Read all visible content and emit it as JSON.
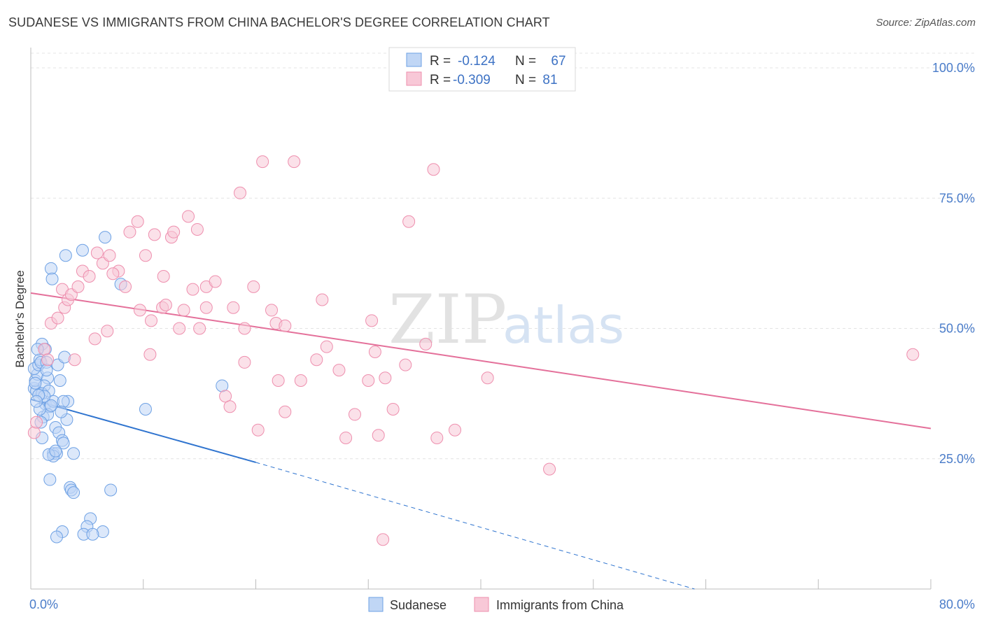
{
  "title": "SUDANESE VS IMMIGRANTS FROM CHINA BACHELOR'S DEGREE CORRELATION CHART",
  "source": "Source: ZipAtlas.com",
  "watermark": {
    "zip": "ZIP",
    "atlas": "atlas"
  },
  "chart_data": {
    "type": "scatter",
    "ylabel": "Bachelor's Degree",
    "xlim": [
      0,
      80
    ],
    "ylim": [
      0,
      105
    ],
    "x_tick_labels": [
      {
        "value": 0,
        "label": "0.0%"
      },
      {
        "value": 80,
        "label": "80.0%"
      }
    ],
    "y_tick_labels": [
      {
        "value": 25,
        "label": "25.0%"
      },
      {
        "value": 50,
        "label": "50.0%"
      },
      {
        "value": 75,
        "label": "75.0%"
      },
      {
        "value": 100,
        "label": "100.0%"
      }
    ],
    "legend": [
      {
        "name": "Sudanese",
        "r_label": "R =",
        "r": "-0.124",
        "n_label": "N =",
        "n": "67",
        "color": "#6ea1e4",
        "fill": "#c0d6f5",
        "line": "#2f74cf"
      },
      {
        "name": "Immigrants from China",
        "r_label": "R =",
        "r": "-0.309",
        "n_label": "N =",
        "n": "81",
        "color": "#ee8fae",
        "fill": "#f8c8d7",
        "line": "#e4709a"
      }
    ],
    "series": [
      {
        "name": "Sudanese",
        "trend": {
          "x0": 0,
          "y0": 36.4,
          "x1": 20,
          "y1": 24.3,
          "dash_to_x": 59,
          "dash_to_y": 0
        },
        "points": [
          [
            0.3,
            38.5
          ],
          [
            0.5,
            38.0
          ],
          [
            0.4,
            40.0
          ],
          [
            0.6,
            41.2
          ],
          [
            0.3,
            42.3
          ],
          [
            0.7,
            43.0
          ],
          [
            0.8,
            44.0
          ],
          [
            1.0,
            47.0
          ],
          [
            0.9,
            43.5
          ],
          [
            1.3,
            46.0
          ],
          [
            1.4,
            43.5
          ],
          [
            1.5,
            40.5
          ],
          [
            1.2,
            39.0
          ],
          [
            1.0,
            37.5
          ],
          [
            1.6,
            38.0
          ],
          [
            1.3,
            35.5
          ],
          [
            1.7,
            35.0
          ],
          [
            1.1,
            33.0
          ],
          [
            1.5,
            33.5
          ],
          [
            0.8,
            34.5
          ],
          [
            2.0,
            36.0
          ],
          [
            1.8,
            35.2
          ],
          [
            2.6,
            40.0
          ],
          [
            2.4,
            43.0
          ],
          [
            3.0,
            44.5
          ],
          [
            2.2,
            31.0
          ],
          [
            2.5,
            30.0
          ],
          [
            2.8,
            28.5
          ],
          [
            2.9,
            28.0
          ],
          [
            3.2,
            32.5
          ],
          [
            3.3,
            36.0
          ],
          [
            2.9,
            36.0
          ],
          [
            2.0,
            26.0
          ],
          [
            2.3,
            26.0
          ],
          [
            2.0,
            25.5
          ],
          [
            1.6,
            25.8
          ],
          [
            2.2,
            26.5
          ],
          [
            1.0,
            29.0
          ],
          [
            1.7,
            21.0
          ],
          [
            3.5,
            19.5
          ],
          [
            3.6,
            19.0
          ],
          [
            3.8,
            18.5
          ],
          [
            7.1,
            19.0
          ],
          [
            5.3,
            13.5
          ],
          [
            5.0,
            12.0
          ],
          [
            6.4,
            11.0
          ],
          [
            2.8,
            11.0
          ],
          [
            2.3,
            10.0
          ],
          [
            4.7,
            10.5
          ],
          [
            5.5,
            10.5
          ],
          [
            1.8,
            61.5
          ],
          [
            1.9,
            59.5
          ],
          [
            3.1,
            64.0
          ],
          [
            4.6,
            65.0
          ],
          [
            6.6,
            67.5
          ],
          [
            8.0,
            58.5
          ],
          [
            10.2,
            34.5
          ],
          [
            17.0,
            39.0
          ],
          [
            0.4,
            39.5
          ],
          [
            0.9,
            32.0
          ],
          [
            0.6,
            46.0
          ],
          [
            1.4,
            42.0
          ],
          [
            2.7,
            34.0
          ],
          [
            1.2,
            37.0
          ],
          [
            0.7,
            37.2
          ],
          [
            3.8,
            26.0
          ],
          [
            0.5,
            36.0
          ]
        ]
      },
      {
        "name": "Immigrants from China",
        "trend": {
          "x0": 0,
          "y0": 56.8,
          "x1": 80,
          "y1": 30.8
        },
        "points": [
          [
            0.3,
            30.0
          ],
          [
            0.5,
            32.0
          ],
          [
            1.2,
            46.0
          ],
          [
            1.5,
            44.0
          ],
          [
            1.8,
            51.0
          ],
          [
            2.4,
            52.0
          ],
          [
            2.8,
            57.5
          ],
          [
            3.0,
            54.0
          ],
          [
            3.3,
            55.5
          ],
          [
            3.6,
            56.5
          ],
          [
            4.2,
            58.0
          ],
          [
            4.6,
            61.0
          ],
          [
            5.2,
            60.0
          ],
          [
            5.9,
            64.5
          ],
          [
            6.4,
            62.5
          ],
          [
            7.0,
            64.0
          ],
          [
            7.8,
            61.0
          ],
          [
            7.3,
            60.5
          ],
          [
            8.4,
            58.0
          ],
          [
            8.8,
            68.5
          ],
          [
            9.5,
            70.5
          ],
          [
            10.2,
            64.0
          ],
          [
            11.0,
            68.0
          ],
          [
            11.8,
            60.0
          ],
          [
            12.5,
            67.5
          ],
          [
            12.7,
            68.5
          ],
          [
            14.0,
            71.5
          ],
          [
            14.8,
            69.0
          ],
          [
            15.6,
            58.0
          ],
          [
            16.4,
            59.0
          ],
          [
            18.6,
            76.0
          ],
          [
            20.6,
            82.0
          ],
          [
            23.4,
            82.0
          ],
          [
            35.8,
            80.5
          ],
          [
            33.6,
            70.5
          ],
          [
            14.4,
            57.5
          ],
          [
            9.7,
            53.5
          ],
          [
            10.7,
            51.5
          ],
          [
            11.7,
            54.0
          ],
          [
            12.0,
            54.5
          ],
          [
            13.2,
            50.0
          ],
          [
            13.6,
            53.5
          ],
          [
            15.0,
            50.0
          ],
          [
            15.6,
            54.0
          ],
          [
            18.0,
            54.0
          ],
          [
            19.0,
            50.0
          ],
          [
            19.8,
            58.0
          ],
          [
            21.4,
            53.5
          ],
          [
            21.8,
            51.0
          ],
          [
            22.6,
            50.5
          ],
          [
            25.9,
            55.5
          ],
          [
            30.3,
            51.5
          ],
          [
            3.9,
            44.0
          ],
          [
            5.7,
            48.0
          ],
          [
            6.8,
            49.5
          ],
          [
            10.6,
            45.0
          ],
          [
            17.3,
            37.0
          ],
          [
            17.7,
            35.0
          ],
          [
            19.0,
            43.5
          ],
          [
            22.0,
            40.0
          ],
          [
            24.0,
            40.0
          ],
          [
            25.4,
            44.0
          ],
          [
            26.3,
            46.5
          ],
          [
            27.4,
            42.0
          ],
          [
            28.0,
            29.0
          ],
          [
            28.8,
            33.5
          ],
          [
            30.0,
            40.0
          ],
          [
            30.6,
            45.5
          ],
          [
            31.5,
            40.5
          ],
          [
            32.2,
            34.5
          ],
          [
            33.3,
            43.0
          ],
          [
            35.1,
            47.0
          ],
          [
            36.1,
            29.0
          ],
          [
            37.7,
            30.5
          ],
          [
            40.6,
            40.5
          ],
          [
            46.1,
            23.0
          ],
          [
            78.4,
            45.0
          ],
          [
            31.3,
            9.5
          ],
          [
            20.2,
            30.5
          ],
          [
            22.6,
            34.0
          ],
          [
            30.9,
            29.5
          ]
        ]
      }
    ]
  }
}
